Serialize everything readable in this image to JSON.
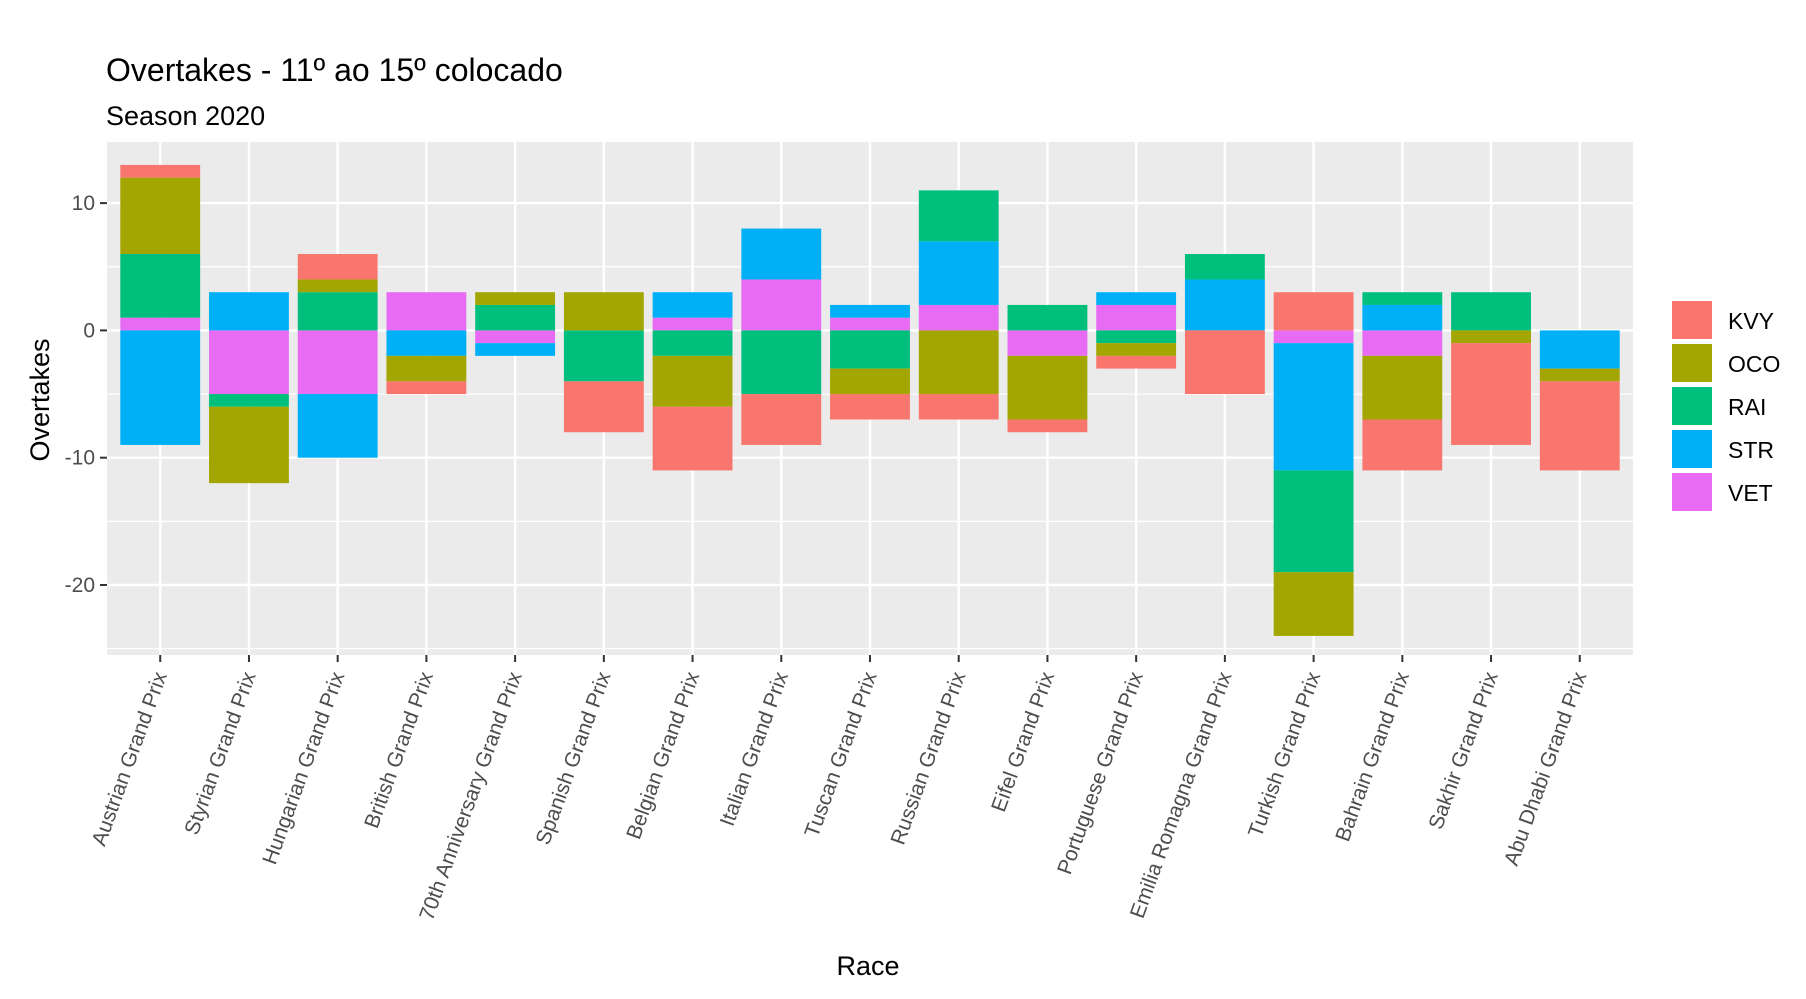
{
  "chart_data": {
    "type": "bar",
    "stacked": true,
    "title": "Overtakes - 11º ao 15º colocado",
    "subtitle": "Season 2020",
    "xlabel": "Race",
    "ylabel": "Overtakes",
    "ylim": [
      -25.5,
      14.8
    ],
    "yticks": [
      10,
      0,
      -10,
      -20
    ],
    "ytick_labels": [
      "10",
      "0",
      "-10",
      "-20"
    ],
    "grid": true,
    "legend_position": "right",
    "categories": [
      "Austrian Grand Prix",
      "Styrian Grand Prix",
      "Hungarian Grand Prix",
      "British Grand Prix",
      "70th Anniversary Grand Prix",
      "Spanish Grand Prix",
      "Belgian Grand Prix",
      "Italian Grand Prix",
      "Tuscan Grand Prix",
      "Russian Grand Prix",
      "Eifel Grand Prix",
      "Portuguese Grand Prix",
      "Emilia Romagna Grand Prix",
      "Turkish Grand Prix",
      "Bahrain Grand Prix",
      "Sakhir Grand Prix",
      "Abu Dhabi Grand Prix"
    ],
    "series": [
      {
        "name": "KVY",
        "color": "#F8766D",
        "values": [
          1,
          0,
          2,
          -1,
          0,
          -4,
          -5,
          -4,
          -2,
          -2,
          -1,
          -1,
          -5,
          3,
          -4,
          -8,
          -7
        ]
      },
      {
        "name": "OCO",
        "color": "#A3A500",
        "values": [
          6,
          -6,
          1,
          -2,
          1,
          3,
          -4,
          0,
          -2,
          -5,
          -5,
          -1,
          0,
          -5,
          -5,
          -1,
          -1
        ]
      },
      {
        "name": "RAI",
        "color": "#00BF7D",
        "values": [
          5,
          -1,
          3,
          0,
          2,
          -4,
          -2,
          -5,
          -3,
          4,
          2,
          -1,
          2,
          -8,
          1,
          3,
          0
        ]
      },
      {
        "name": "STR",
        "color": "#00B0F6",
        "values": [
          -9,
          3,
          -5,
          -2,
          -1,
          0,
          2,
          4,
          1,
          5,
          0,
          1,
          4,
          -10,
          2,
          0,
          -3
        ]
      },
      {
        "name": "VET",
        "color": "#E76BF3",
        "values": [
          1,
          -5,
          -5,
          3,
          -1,
          0,
          1,
          4,
          1,
          2,
          -2,
          2,
          0,
          -1,
          -2,
          0,
          0
        ]
      }
    ]
  }
}
